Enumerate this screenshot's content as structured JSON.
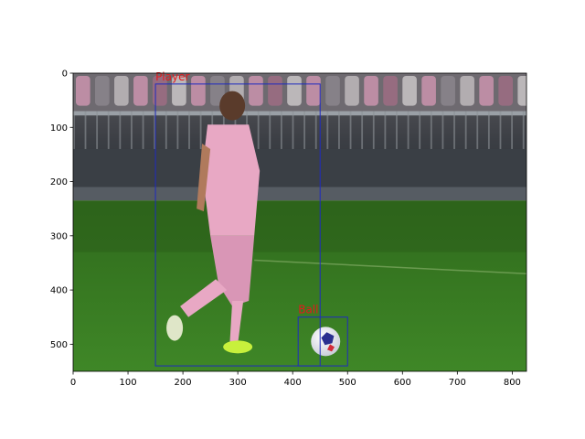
{
  "chart_data": {
    "type": "image-annotation",
    "title": "",
    "xlabel": "",
    "ylabel": "",
    "xlim": [
      0,
      826
    ],
    "ylim": [
      550,
      0
    ],
    "y_inverted": true,
    "grid": false,
    "legend": "none",
    "xticks": [
      0,
      100,
      200,
      300,
      400,
      500,
      600,
      700,
      800
    ],
    "yticks": [
      0,
      100,
      200,
      300,
      400,
      500
    ],
    "annotations": [
      {
        "label": "Player",
        "x0": 150,
        "y0": 20,
        "x1": 450,
        "y1": 540,
        "color": "#1f2bbf",
        "label_color": "#e31a1c"
      },
      {
        "label": "Ball",
        "x0": 410,
        "y0": 450,
        "x1": 500,
        "y1": 540,
        "color": "#1f2bbf",
        "label_color": "#e31a1c"
      }
    ],
    "image": {
      "description": "photo",
      "colors": {
        "grass": "#3c7d24",
        "grass_dark": "#2b5e1a",
        "stands": "#4a4e55",
        "crowd_pink": "#d79ab6",
        "kit_pink": "#e8a8c4",
        "ball": "#eef0f6"
      }
    }
  }
}
